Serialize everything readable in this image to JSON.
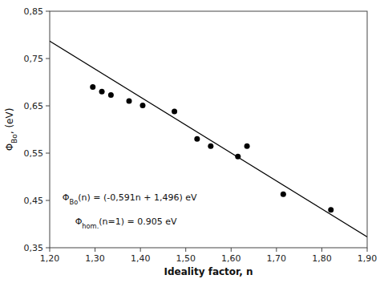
{
  "chart_data": {
    "type": "scatter",
    "x_label": "Ideality factor, n",
    "y_label": "ΦBo, (eV)",
    "annotations": [
      "ΦBo(n) = (-0,591n + 1,496) eV",
      "Φhom.(n=1) = 0.905 eV"
    ],
    "series": [
      {
        "type": "scatter",
        "color": "black",
        "marker": "circle",
        "x": [
          1.295,
          1.315,
          1.335,
          1.375,
          1.405,
          1.475,
          1.525,
          1.555,
          1.615,
          1.635,
          1.715,
          1.82
        ],
        "values": [
          0.69,
          0.68,
          0.673,
          0.66,
          0.651,
          0.638,
          0.58,
          0.565,
          0.543,
          0.565,
          0.463,
          0.43
        ]
      },
      {
        "type": "line",
        "color": "black",
        "line_style": "solid",
        "x": [
          1.2,
          1.9
        ],
        "values": [
          0.7868,
          0.3731
        ]
      }
    ],
    "xlim": [
      1.2,
      1.9
    ],
    "ylim": [
      0.35,
      0.85
    ],
    "xticks": [
      {
        "value": 1.2,
        "label": "1,20"
      },
      {
        "value": 1.3,
        "label": "1,30"
      },
      {
        "value": 1.4,
        "label": "1,40"
      },
      {
        "value": 1.5,
        "label": "1,50"
      },
      {
        "value": 1.6,
        "label": "1,60"
      },
      {
        "value": 1.7,
        "label": "1,70"
      },
      {
        "value": 1.8,
        "label": "1,80"
      },
      {
        "value": 1.9,
        "label": "1,90"
      }
    ],
    "yticks": [
      {
        "value": 0.35,
        "label": "0,35"
      },
      {
        "value": 0.45,
        "label": "0,45"
      },
      {
        "value": 0.55,
        "label": "0,55"
      },
      {
        "value": 0.65,
        "label": "0,65"
      },
      {
        "value": 0.75,
        "label": "0,75"
      },
      {
        "value": 0.85,
        "label": "0,85"
      }
    ],
    "grid": false
  }
}
